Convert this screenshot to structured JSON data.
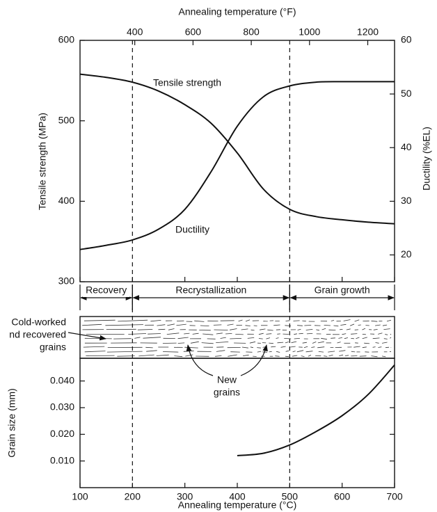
{
  "chart_data": [
    {
      "type": "line",
      "x2label": "Annealing temperature (°F)",
      "ylabel": "Tensile strength (MPa)",
      "y2label": "Ductility (%EL)",
      "x": [
        100,
        150,
        200,
        250,
        300,
        350,
        400,
        450,
        500,
        550,
        600,
        650,
        700
      ],
      "xlim": [
        100,
        700
      ],
      "x2lim": [
        212,
        1292
      ],
      "x2ticks": [
        400,
        600,
        800,
        1000,
        1200
      ],
      "ylim": [
        300,
        600
      ],
      "yticks": [
        300,
        400,
        500,
        600
      ],
      "y2lim": [
        15,
        60
      ],
      "y2ticks": [
        20,
        30,
        40,
        50,
        60
      ],
      "series": [
        {
          "name": "Tensile strength",
          "color": "#111111",
          "values": [
            558,
            554,
            548,
            537,
            520,
            497,
            460,
            415,
            390,
            381,
            377,
            374,
            372
          ]
        },
        {
          "name": "Ductility",
          "color": "#111111",
          "axis": "y2",
          "values": [
            21,
            21.8,
            22.8,
            24.8,
            28.5,
            35.5,
            44,
            49.5,
            51.5,
            52.2,
            52.3,
            52.3,
            52.3
          ]
        }
      ],
      "dividers": [
        200,
        500
      ],
      "regions": [
        {
          "label": "Recovery",
          "from": 100,
          "to": 200
        },
        {
          "label": "Recrystallization",
          "from": 200,
          "to": 500
        },
        {
          "label": "Grain growth",
          "from": 500,
          "to": 700
        }
      ]
    },
    {
      "type": "line",
      "xlabel": "Annealing temperature (°C)",
      "ylabel": "Grain size (mm)",
      "x": [
        400,
        450,
        500,
        550,
        600,
        650,
        700
      ],
      "values": [
        0.012,
        0.0129,
        0.016,
        0.021,
        0.027,
        0.035,
        0.046
      ],
      "color": "#111111",
      "xlim": [
        100,
        700
      ],
      "xticks": [
        100,
        200,
        300,
        400,
        500,
        600,
        700
      ],
      "ylim": [
        0,
        0.048
      ],
      "yticks": [
        {
          "value": 0.01,
          "label": "0.010"
        },
        {
          "value": 0.02,
          "label": "0.020"
        },
        {
          "value": 0.03,
          "label": "0.030"
        },
        {
          "value": 0.04,
          "label": "0.040"
        }
      ]
    }
  ],
  "microstructure": {
    "old_grains": [
      "Cold-worked",
      "nd recovered",
      "grains"
    ],
    "new_grains": [
      "New",
      "grains"
    ]
  }
}
